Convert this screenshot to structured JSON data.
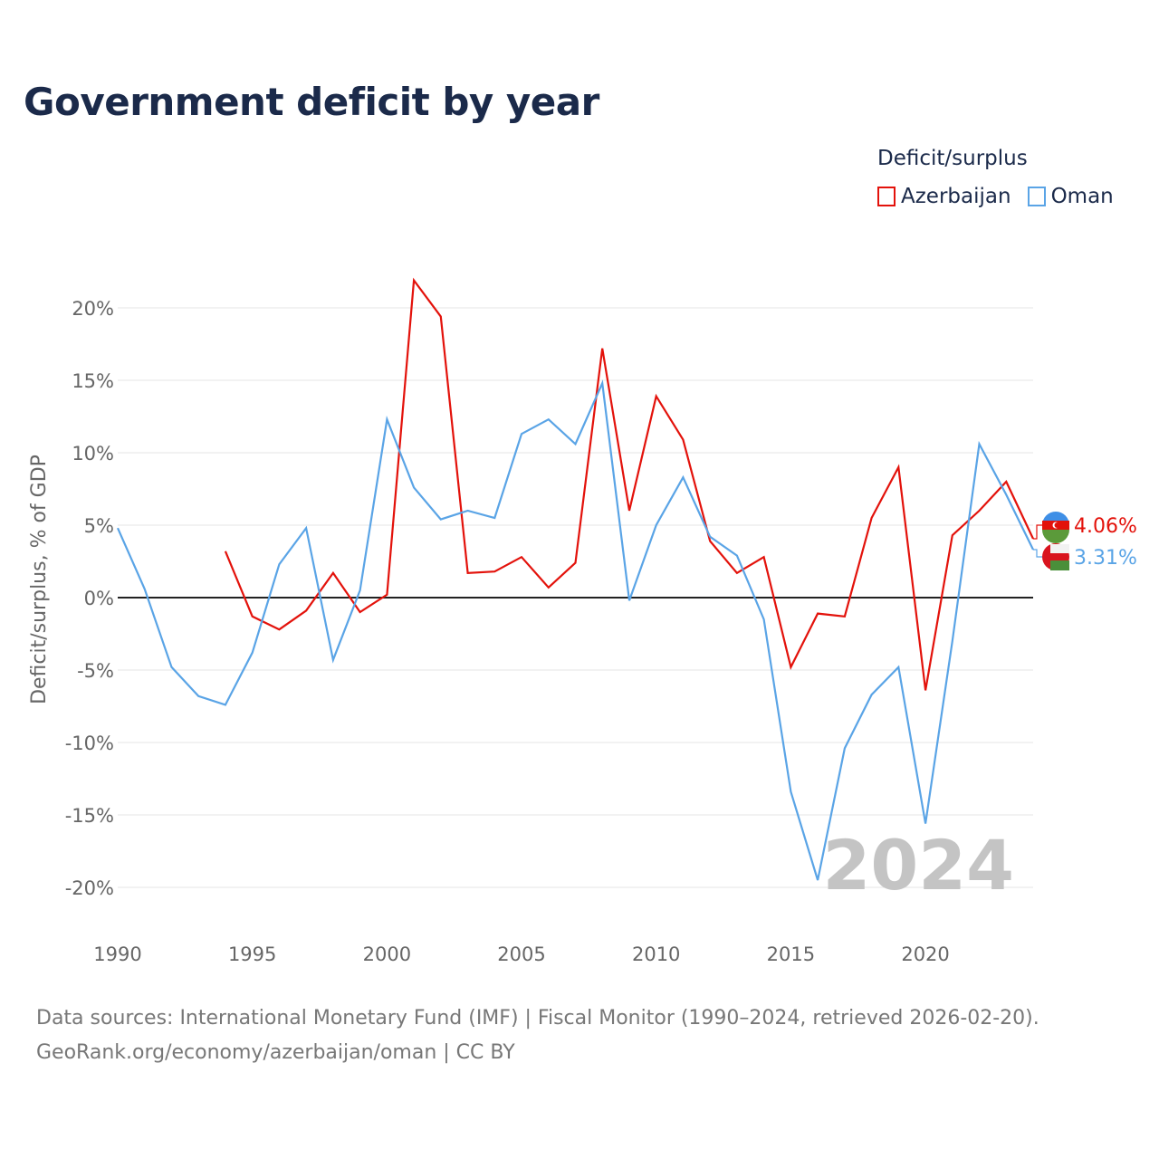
{
  "chart_data": {
    "type": "line",
    "title": "Government deficit by year",
    "ylabel": "Deficit/surplus, % of GDP",
    "xlabel": "",
    "xlim": [
      1990,
      2024
    ],
    "ylim": [
      -20,
      20
    ],
    "yticks": [
      20,
      15,
      10,
      5,
      0,
      -5,
      -10,
      -15,
      -20
    ],
    "ytick_labels": [
      "20%",
      "15%",
      "10%",
      "5%",
      "0%",
      "-5%",
      "-10%",
      "-15%",
      "-20%"
    ],
    "xticks": [
      1990,
      1995,
      2000,
      2005,
      2010,
      2015,
      2020
    ],
    "xtick_labels": [
      "1990",
      "1995",
      "2000",
      "2005",
      "2010",
      "2015",
      "2020"
    ],
    "legend_title": "Deficit/surplus",
    "legend_position": "top-right",
    "watermark_year": "2024",
    "series": [
      {
        "name": "Azerbaijan",
        "color": "#e3120b",
        "end_label": "4.06%",
        "x": [
          1994,
          1995,
          1996,
          1997,
          1998,
          1999,
          2000,
          2001,
          2002,
          2003,
          2004,
          2005,
          2006,
          2007,
          2008,
          2009,
          2010,
          2011,
          2012,
          2013,
          2014,
          2015,
          2016,
          2017,
          2018,
          2019,
          2020,
          2021,
          2022,
          2023,
          2024
        ],
        "values": [
          3.2,
          -1.3,
          -2.2,
          -0.9,
          1.7,
          -1.0,
          0.2,
          21.9,
          19.4,
          1.7,
          1.8,
          2.8,
          0.7,
          2.4,
          17.2,
          6.0,
          13.9,
          10.9,
          3.9,
          1.7,
          2.8,
          -4.8,
          -1.1,
          -1.3,
          5.5,
          9.0,
          -6.4,
          4.3,
          6.0,
          8.0,
          4.06
        ]
      },
      {
        "name": "Oman",
        "color": "#5aa4e6",
        "end_label": "3.31%",
        "x": [
          1990,
          1991,
          1992,
          1993,
          1994,
          1995,
          1996,
          1997,
          1998,
          1999,
          2000,
          2001,
          2002,
          2003,
          2004,
          2005,
          2006,
          2007,
          2008,
          2009,
          2010,
          2011,
          2012,
          2013,
          2014,
          2015,
          2016,
          2017,
          2018,
          2019,
          2020,
          2021,
          2022,
          2023,
          2024
        ],
        "values": [
          4.8,
          0.6,
          -4.8,
          -6.8,
          -7.4,
          -3.8,
          2.3,
          4.8,
          -4.3,
          0.5,
          12.3,
          7.6,
          5.4,
          6.0,
          5.5,
          11.3,
          12.3,
          10.6,
          14.8,
          -0.2,
          5.0,
          8.3,
          4.2,
          2.9,
          -1.5,
          -13.4,
          -19.5,
          -10.4,
          -6.7,
          -4.8,
          -15.6,
          -3.0,
          10.6,
          7.1,
          3.31
        ]
      }
    ]
  },
  "footer": {
    "line1": "Data sources: International Monetary Fund (IMF) | Fiscal Monitor (1990–2024, retrieved 2026-02-20).",
    "line2": "GeoRank.org/economy/azerbaijan/oman | CC BY"
  }
}
